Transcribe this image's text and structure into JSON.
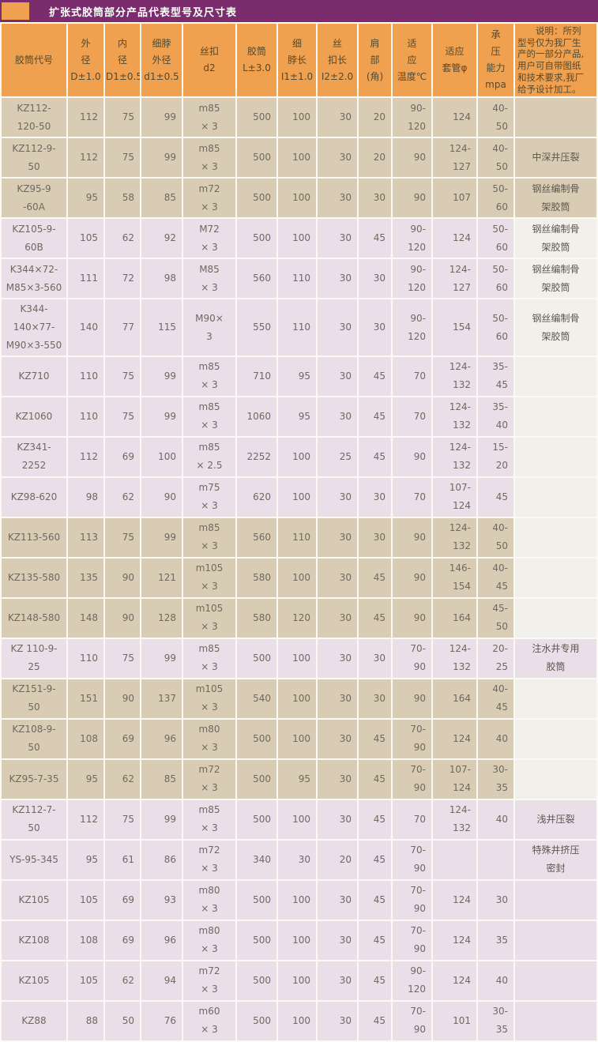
{
  "title": "扩张式胶筒部分产品代表型号及尺寸表",
  "colors": {
    "title_bar": "#7b2c6c",
    "header_orange": "#f0a150",
    "row_tan": "#d8ccb5",
    "row_pink": "#eadee8",
    "page_bg": "#f2f0ea"
  },
  "table": {
    "columns": [
      {
        "key": "code",
        "label": "胶筒代号",
        "width": 82,
        "align": "center"
      },
      {
        "key": "od",
        "label": "外\n径\nD±1.0",
        "width": 45,
        "align": "right"
      },
      {
        "key": "id",
        "label": "内\n径\nD1±0.5",
        "width": 44,
        "align": "right"
      },
      {
        "key": "neck_od",
        "label": "细脖\n外径\nd1±0.5",
        "width": 51,
        "align": "right"
      },
      {
        "key": "thread",
        "label": "丝扣\nd2",
        "width": 66,
        "align": "center"
      },
      {
        "key": "length",
        "label": "胶筒\nL±3.0",
        "width": 50,
        "align": "right"
      },
      {
        "key": "neck_len",
        "label": "细\n脖长\nI1±1.0",
        "width": 48,
        "align": "right"
      },
      {
        "key": "thread_len",
        "label": "丝\n扣长\nI2±2.0",
        "width": 50,
        "align": "right"
      },
      {
        "key": "shoulder",
        "label": "肩\n部\n(角)",
        "width": 41,
        "align": "right"
      },
      {
        "key": "temp",
        "label": "适\n应\n温度℃",
        "width": 49,
        "align": "right"
      },
      {
        "key": "casing",
        "label": "适应\n套管φ",
        "width": 55,
        "align": "right"
      },
      {
        "key": "pressure",
        "label": "承\n压\n能力mpa",
        "width": 45,
        "align": "right"
      },
      {
        "key": "note",
        "label": "　　说明：所列\n型号仅为我厂生\n产的一部分产品,\n用户可自带图纸\n和技术要求,我厂\n给予设计加工。",
        "width": 103,
        "align": "center",
        "header_class": "note-head"
      }
    ],
    "rows": [
      {
        "code": "KZ112-\n120-50",
        "od": "112",
        "id": "75",
        "neck_od": "99",
        "thread": "m85\n× 3",
        "length": "500",
        "neck_len": "100",
        "thread_len": "30",
        "shoulder": "20",
        "temp": "90-\n120",
        "casing": "124",
        "pressure": "40-\n50",
        "note": "",
        "row_bg": "tan",
        "note_bg": "tan"
      },
      {
        "code": "KZ112-9-\n50",
        "od": "112",
        "id": "75",
        "neck_od": "99",
        "thread": "m85\n× 3",
        "length": "500",
        "neck_len": "100",
        "thread_len": "30",
        "shoulder": "20",
        "temp": "90",
        "casing": "124-\n127",
        "pressure": "40-\n50",
        "note": "中深井压裂",
        "row_bg": "tan",
        "note_bg": "tan"
      },
      {
        "code": "KZ95-9\n-60A",
        "od": "95",
        "id": "58",
        "neck_od": "85",
        "thread": "m72\n× 3",
        "length": "500",
        "neck_len": "100",
        "thread_len": "30",
        "shoulder": "30",
        "temp": "90",
        "casing": "107",
        "pressure": "50-\n60",
        "note": "钢丝编制骨\n架胶筒",
        "row_bg": "tan",
        "note_bg": "tan"
      },
      {
        "code": "KZ105-9-\n60B",
        "od": "105",
        "id": "62",
        "neck_od": "92",
        "thread": "M72\n× 3",
        "length": "500",
        "neck_len": "100",
        "thread_len": "30",
        "shoulder": "45",
        "temp": "90-\n120",
        "casing": "124",
        "pressure": "50-\n60",
        "note": "钢丝编制骨\n架胶筒",
        "row_bg": "pink",
        "note_bg": "page"
      },
      {
        "code": "K344×72-\nM85×3-560",
        "od": "111",
        "id": "72",
        "neck_od": "98",
        "thread": "M85\n× 3",
        "length": "560",
        "neck_len": "110",
        "thread_len": "30",
        "shoulder": "30",
        "temp": "90-\n120",
        "casing": "124-\n127",
        "pressure": "50-\n60",
        "note": "钢丝编制骨\n架胶筒",
        "row_bg": "pink",
        "note_bg": "page"
      },
      {
        "code": "K344-\n140×77-\nM90×3-550",
        "od": "140",
        "id": "77",
        "neck_od": "115",
        "thread": "M90×\n3",
        "length": "550",
        "neck_len": "110",
        "thread_len": "30",
        "shoulder": "30",
        "temp": "90-\n120",
        "casing": "154",
        "pressure": "50-\n60",
        "note": "钢丝编制骨\n架胶筒",
        "row_bg": "pink",
        "note_bg": "page"
      },
      {
        "code": "KZ710",
        "od": "110",
        "id": "75",
        "neck_od": "99",
        "thread": "m85\n× 3",
        "length": "710",
        "neck_len": "95",
        "thread_len": "30",
        "shoulder": "45",
        "temp": "70",
        "casing": "124-\n132",
        "pressure": "35-\n45",
        "note": "",
        "row_bg": "pink",
        "note_bg": "page"
      },
      {
        "code": "KZ1060",
        "od": "110",
        "id": "75",
        "neck_od": "99",
        "thread": "m85\n× 3",
        "length": "1060",
        "neck_len": "95",
        "thread_len": "30",
        "shoulder": "45",
        "temp": "70",
        "casing": "124-\n132",
        "pressure": "35-\n40",
        "note": "",
        "row_bg": "pink",
        "note_bg": "page"
      },
      {
        "code": "KZ341-\n2252",
        "od": "112",
        "id": "69",
        "neck_od": "100",
        "thread": "m85\n× 2.5",
        "length": "2252",
        "neck_len": "100",
        "thread_len": "25",
        "shoulder": "45",
        "temp": "90",
        "casing": "124-\n132",
        "pressure": "15-\n20",
        "note": "",
        "row_bg": "pink",
        "note_bg": "page"
      },
      {
        "code": "KZ98-620",
        "od": "98",
        "id": "62",
        "neck_od": "90",
        "thread": "m75\n× 3",
        "length": "620",
        "neck_len": "100",
        "thread_len": "30",
        "shoulder": "30",
        "temp": "70",
        "casing": "107-\n124",
        "pressure": "45",
        "note": "",
        "row_bg": "pink",
        "note_bg": "page"
      },
      {
        "code": "KZ113-560",
        "od": "113",
        "id": "75",
        "neck_od": "99",
        "thread": "m85\n× 3",
        "length": "560",
        "neck_len": "110",
        "thread_len": "30",
        "shoulder": "30",
        "temp": "90",
        "casing": "124-\n132",
        "pressure": "40-\n50",
        "note": "",
        "row_bg": "tan",
        "note_bg": "page"
      },
      {
        "code": "KZ135-580",
        "od": "135",
        "id": "90",
        "neck_od": "121",
        "thread": "m105\n× 3",
        "length": "580",
        "neck_len": "100",
        "thread_len": "30",
        "shoulder": "45",
        "temp": "90",
        "casing": "146-\n154",
        "pressure": "40-\n45",
        "note": "",
        "row_bg": "tan",
        "note_bg": "page"
      },
      {
        "code": "KZ148-580",
        "od": "148",
        "id": "90",
        "neck_od": "128",
        "thread": "m105\n× 3",
        "length": "580",
        "neck_len": "120",
        "thread_len": "30",
        "shoulder": "45",
        "temp": "90",
        "casing": "164",
        "pressure": "45-\n50",
        "note": "",
        "row_bg": "tan",
        "note_bg": "page"
      },
      {
        "code": "KZ 110-9-\n25",
        "od": "110",
        "id": "75",
        "neck_od": "99",
        "thread": "m85\n× 3",
        "length": "500",
        "neck_len": "100",
        "thread_len": "30",
        "shoulder": "30",
        "temp": "70-\n90",
        "casing": "124-\n132",
        "pressure": "20-\n25",
        "note": "注水井专用\n胶筒",
        "row_bg": "pink",
        "note_bg": "pink"
      },
      {
        "code": "KZ151-9-\n50",
        "od": "151",
        "id": "90",
        "neck_od": "137",
        "thread": "m105\n× 3",
        "length": "540",
        "neck_len": "100",
        "thread_len": "30",
        "shoulder": "30",
        "temp": "90",
        "casing": "164",
        "pressure": "40-\n45",
        "note": "",
        "row_bg": "tan",
        "note_bg": "page"
      },
      {
        "code": "KZ108-9-\n50",
        "od": "108",
        "id": "69",
        "neck_od": "96",
        "thread": "m80\n× 3",
        "length": "500",
        "neck_len": "100",
        "thread_len": "30",
        "shoulder": "45",
        "temp": "70-\n90",
        "casing": "124",
        "pressure": "40",
        "note": "",
        "row_bg": "tan",
        "note_bg": "page"
      },
      {
        "code": "KZ95-7-35",
        "od": "95",
        "id": "62",
        "neck_od": "85",
        "thread": "m72\n× 3",
        "length": "500",
        "neck_len": "95",
        "thread_len": "30",
        "shoulder": "45",
        "temp": "70-\n90",
        "casing": "107-\n124",
        "pressure": "30-\n35",
        "note": "",
        "row_bg": "tan",
        "note_bg": "page"
      },
      {
        "code": "KZ112-7-\n50",
        "od": "112",
        "id": "75",
        "neck_od": "99",
        "thread": "m85\n× 3",
        "length": "500",
        "neck_len": "100",
        "thread_len": "30",
        "shoulder": "45",
        "temp": "70",
        "casing": "124-\n132",
        "pressure": "40",
        "note": "浅井压裂",
        "row_bg": "pink",
        "note_bg": "pink"
      },
      {
        "code": "YS-95-345",
        "od": "95",
        "id": "61",
        "neck_od": "86",
        "thread": "m72\n× 3",
        "length": "340",
        "neck_len": "30",
        "thread_len": "20",
        "shoulder": "45",
        "temp": "70-\n90",
        "casing": "",
        "pressure": "",
        "note": "特殊井挤压\n密封",
        "row_bg": "pink",
        "note_bg": "pink"
      },
      {
        "code": "KZ105",
        "od": "105",
        "id": "69",
        "neck_od": "93",
        "thread": "m80\n× 3",
        "length": "500",
        "neck_len": "100",
        "thread_len": "30",
        "shoulder": "45",
        "temp": "70-\n90",
        "casing": "124",
        "pressure": "30",
        "note": "",
        "row_bg": "pink",
        "note_bg": "pink"
      },
      {
        "code": "KZ108",
        "od": "108",
        "id": "69",
        "neck_od": "96",
        "thread": "m80\n× 3",
        "length": "500",
        "neck_len": "100",
        "thread_len": "30",
        "shoulder": "45",
        "temp": "70-\n90",
        "casing": "124",
        "pressure": "35",
        "note": "",
        "row_bg": "pink",
        "note_bg": "pink"
      },
      {
        "code": "KZ105",
        "od": "105",
        "id": "62",
        "neck_od": "94",
        "thread": "m72\n× 3",
        "length": "500",
        "neck_len": "100",
        "thread_len": "30",
        "shoulder": "45",
        "temp": "90-\n120",
        "casing": "124",
        "pressure": "40",
        "note": "",
        "row_bg": "pink",
        "note_bg": "pink"
      },
      {
        "code": "KZ88",
        "od": "88",
        "id": "50",
        "neck_od": "76",
        "thread": "m60\n× 3",
        "length": "500",
        "neck_len": "100",
        "thread_len": "30",
        "shoulder": "45",
        "temp": "70-\n90",
        "casing": "101",
        "pressure": "30-\n35",
        "note": "",
        "row_bg": "pink",
        "note_bg": "pink"
      }
    ]
  }
}
